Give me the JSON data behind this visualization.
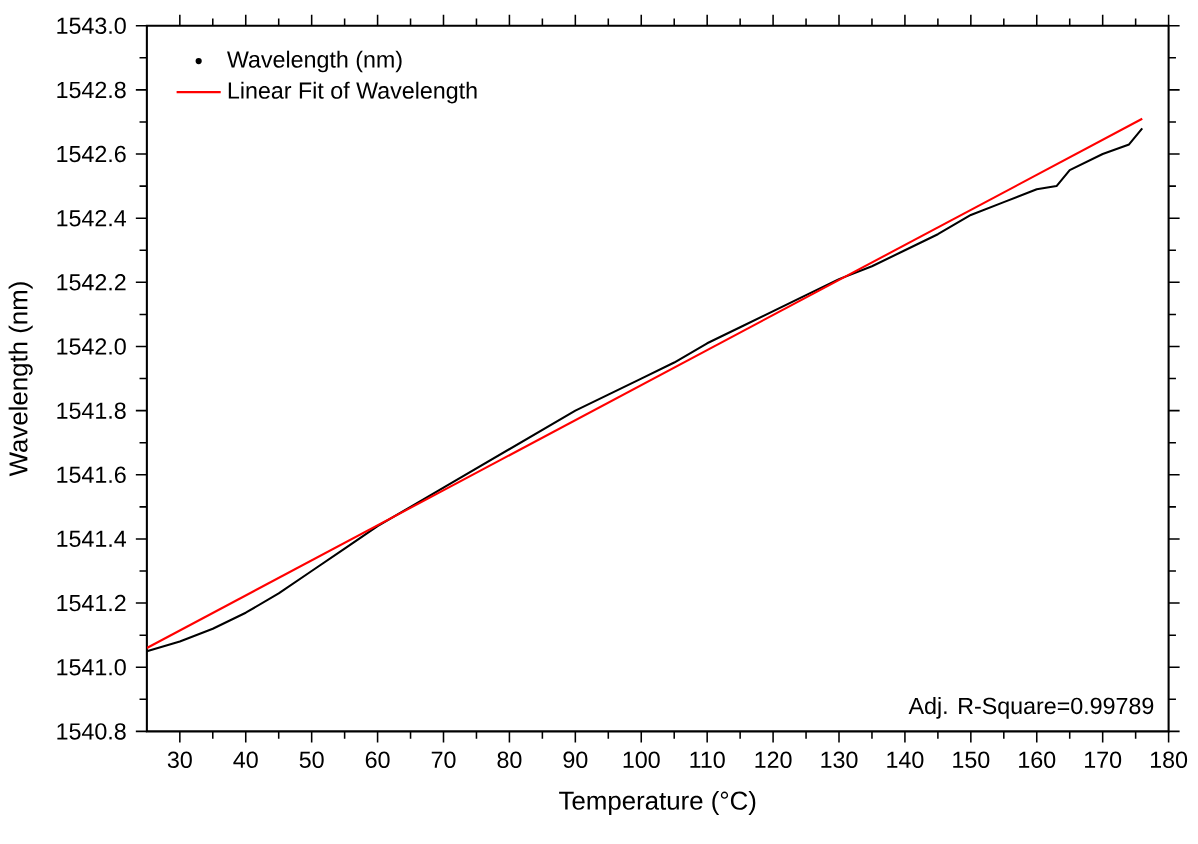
{
  "chart_data": {
    "type": "line",
    "xlabel": "Temperature (°C)",
    "ylabel": "Wavelength (nm)",
    "xlim": [
      25,
      180
    ],
    "ylim": [
      1540.8,
      1543.0
    ],
    "xticks": [
      30,
      40,
      50,
      60,
      70,
      80,
      90,
      100,
      110,
      120,
      130,
      140,
      150,
      160,
      170,
      180
    ],
    "yticks": [
      {
        "value": 1540.8,
        "label": "1540.8"
      },
      {
        "value": 1541.0,
        "label": "1541.0"
      },
      {
        "value": 1541.2,
        "label": "1541.2"
      },
      {
        "value": 1541.4,
        "label": "1541.4"
      },
      {
        "value": 1541.6,
        "label": "1541.6"
      },
      {
        "value": 1541.8,
        "label": "1541.8"
      },
      {
        "value": 1542.0,
        "label": "1542.0"
      },
      {
        "value": 1542.2,
        "label": "1542.2"
      },
      {
        "value": 1542.4,
        "label": "1542.4"
      },
      {
        "value": 1542.6,
        "label": "1542.6"
      },
      {
        "value": 1542.8,
        "label": "1542.8"
      },
      {
        "value": 1543.0,
        "label": "1543.0"
      }
    ],
    "legend": "top left",
    "grid": false,
    "marker": "none",
    "line_style": "solid",
    "annotations": [
      "Adj. R-Square=0.99789"
    ],
    "series": [
      {
        "name": "Wavelength (nm)",
        "color": "#000000",
        "x": [
          25,
          30,
          35,
          40,
          45,
          50,
          55,
          60,
          65,
          70,
          75,
          80,
          85,
          90,
          95,
          100,
          105,
          110,
          115,
          120,
          125,
          130,
          135,
          140,
          145,
          150,
          155,
          160,
          163,
          165,
          170,
          174,
          176
        ],
        "values": [
          1541.05,
          1541.08,
          1541.12,
          1541.17,
          1541.23,
          1541.3,
          1541.37,
          1541.44,
          1541.5,
          1541.56,
          1541.62,
          1541.68,
          1541.74,
          1541.8,
          1541.85,
          1541.9,
          1541.95,
          1542.01,
          1542.06,
          1542.11,
          1542.16,
          1542.21,
          1542.25,
          1542.3,
          1542.35,
          1542.41,
          1542.45,
          1542.49,
          1542.5,
          1542.55,
          1542.6,
          1542.63,
          1542.68
        ]
      },
      {
        "name": "Linear Fit of Wavelength",
        "color": "#ff0000",
        "x": [
          25,
          176
        ],
        "values": [
          1541.06,
          1542.71
        ]
      }
    ]
  }
}
